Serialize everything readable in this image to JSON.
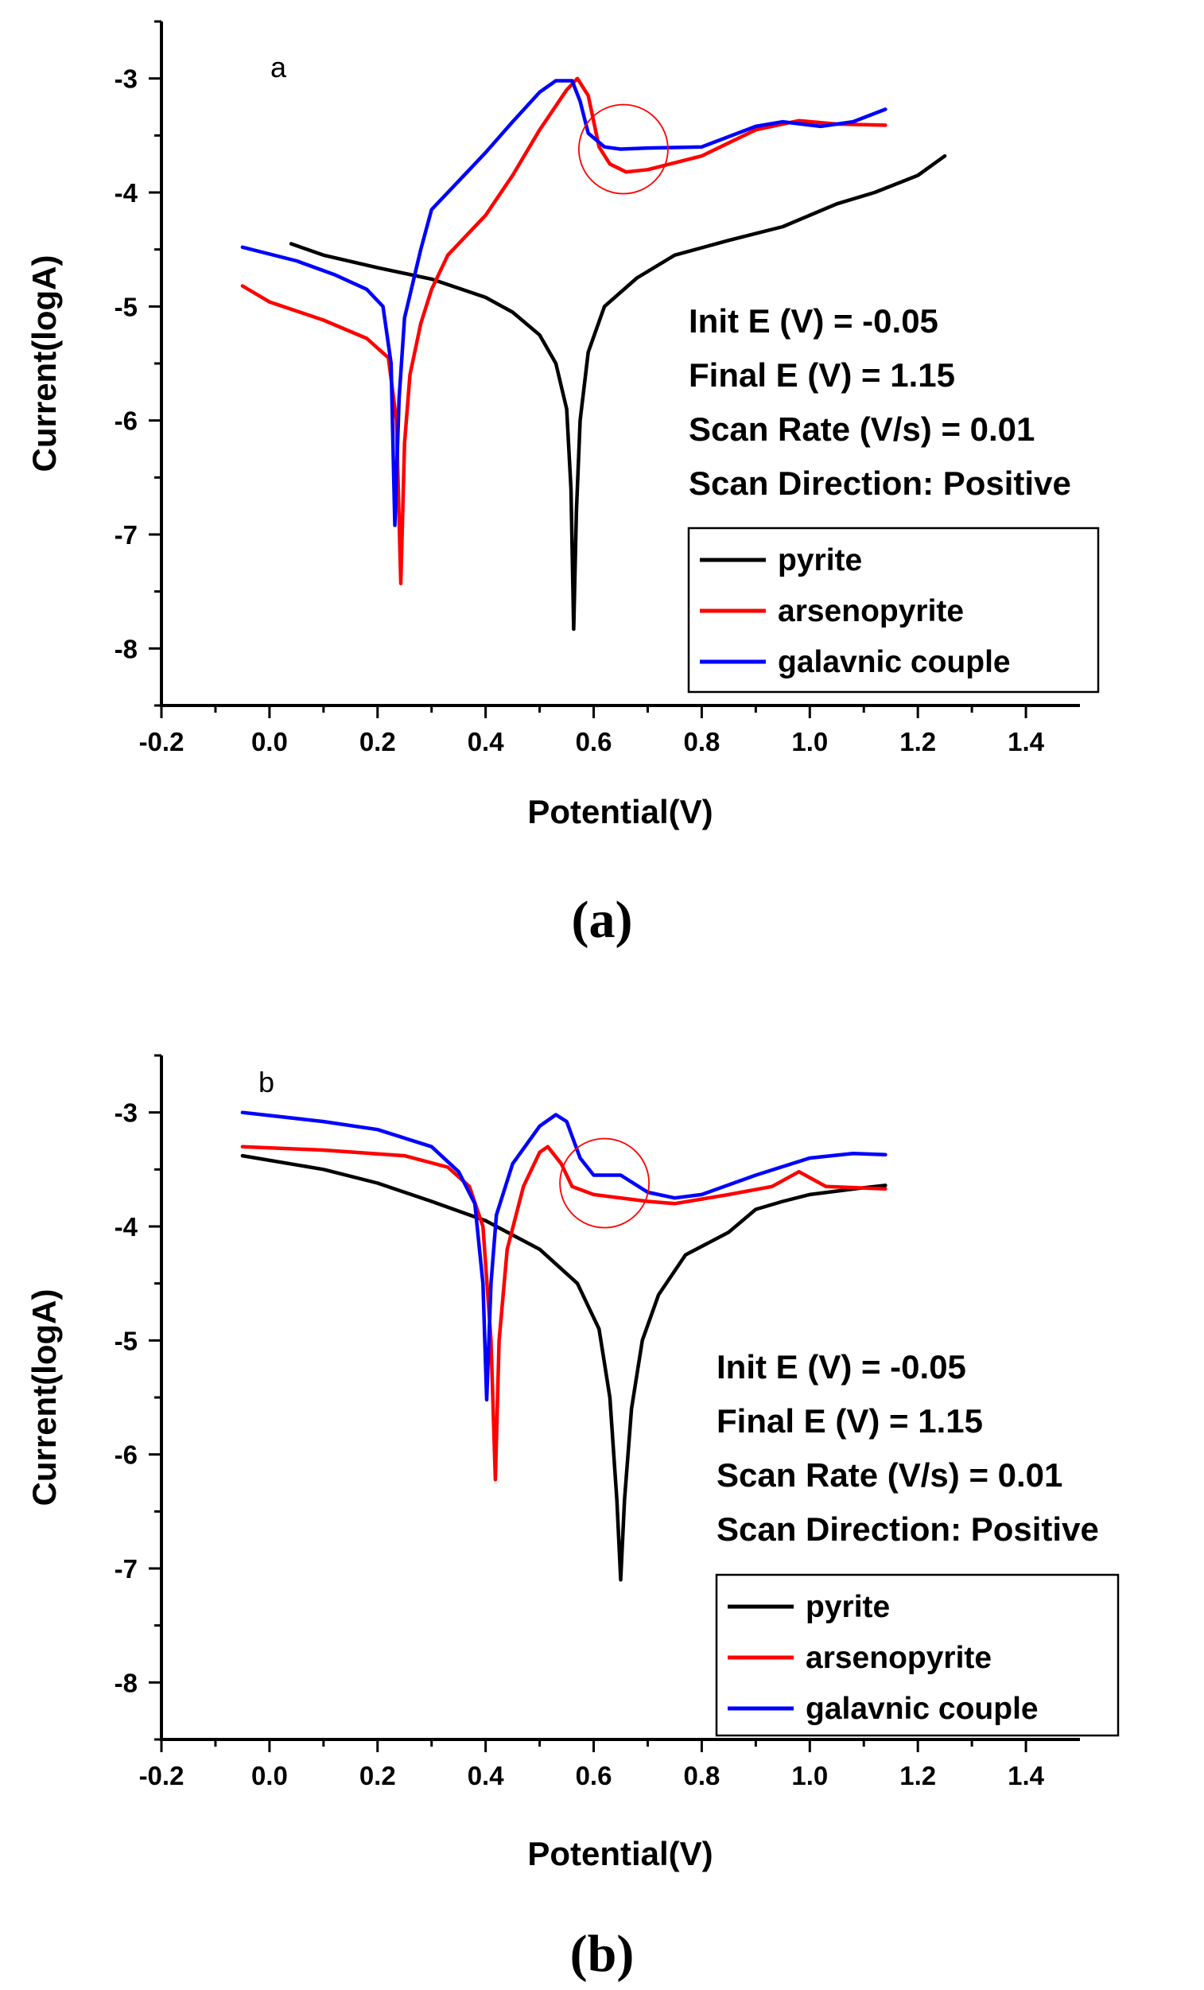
{
  "chart_data": [
    {
      "type": "line",
      "panel_tag": "a",
      "caption": "(a)",
      "xlabel": "Potential(V)",
      "ylabel": "Current(logA)",
      "xlim": [
        -0.2,
        1.5
      ],
      "ylim": [
        -8.5,
        -2.5
      ],
      "xticks": [
        -0.2,
        0.0,
        0.2,
        0.4,
        0.6,
        0.8,
        1.0,
        1.2,
        1.4
      ],
      "yticks": [
        -8,
        -7,
        -6,
        -5,
        -4,
        -3
      ],
      "xtick_labels": [
        "-0.2",
        "0.0",
        "0.2",
        "0.4",
        "0.6",
        "0.8",
        "1.0",
        "1.2",
        "1.4"
      ],
      "ytick_labels": [
        "-8",
        "-7",
        "-6",
        "-5",
        "-4",
        "-3"
      ],
      "info_lines": [
        "Init E (V) = -0.05",
        "Final E (V) = 1.15",
        "Scan Rate (V/s) = 0.01",
        "Scan Direction: Positive"
      ],
      "legend": [
        "pyrite",
        "arsenopyrite",
        "galavnic couple"
      ],
      "annotation_circle": {
        "x": 0.655,
        "y": -3.62
      },
      "series": [
        {
          "name": "pyrite",
          "color": "#000000",
          "points": [
            [
              0.04,
              -4.45
            ],
            [
              0.1,
              -4.55
            ],
            [
              0.2,
              -4.66
            ],
            [
              0.3,
              -4.76
            ],
            [
              0.4,
              -4.92
            ],
            [
              0.45,
              -5.05
            ],
            [
              0.5,
              -5.25
            ],
            [
              0.53,
              -5.5
            ],
            [
              0.55,
              -5.9
            ],
            [
              0.558,
              -6.6
            ],
            [
              0.563,
              -7.83
            ],
            [
              0.568,
              -6.8
            ],
            [
              0.575,
              -6.0
            ],
            [
              0.59,
              -5.4
            ],
            [
              0.62,
              -5.0
            ],
            [
              0.68,
              -4.75
            ],
            [
              0.75,
              -4.55
            ],
            [
              0.85,
              -4.42
            ],
            [
              0.95,
              -4.3
            ],
            [
              1.05,
              -4.1
            ],
            [
              1.12,
              -4.0
            ],
            [
              1.2,
              -3.85
            ],
            [
              1.25,
              -3.68
            ]
          ]
        },
        {
          "name": "arsenopyrite",
          "color": "#ff0000",
          "points": [
            [
              -0.05,
              -4.82
            ],
            [
              0.0,
              -4.96
            ],
            [
              0.1,
              -5.12
            ],
            [
              0.18,
              -5.28
            ],
            [
              0.22,
              -5.45
            ],
            [
              0.235,
              -6.0
            ],
            [
              0.243,
              -7.43
            ],
            [
              0.25,
              -6.2
            ],
            [
              0.26,
              -5.6
            ],
            [
              0.28,
              -5.15
            ],
            [
              0.3,
              -4.85
            ],
            [
              0.33,
              -4.55
            ],
            [
              0.4,
              -4.2
            ],
            [
              0.45,
              -3.85
            ],
            [
              0.5,
              -3.45
            ],
            [
              0.55,
              -3.1
            ],
            [
              0.57,
              -3.0
            ],
            [
              0.59,
              -3.15
            ],
            [
              0.61,
              -3.6
            ],
            [
              0.63,
              -3.75
            ],
            [
              0.66,
              -3.82
            ],
            [
              0.7,
              -3.8
            ],
            [
              0.8,
              -3.68
            ],
            [
              0.9,
              -3.45
            ],
            [
              0.98,
              -3.37
            ],
            [
              1.05,
              -3.4
            ],
            [
              1.14,
              -3.41
            ]
          ]
        },
        {
          "name": "galavnic couple",
          "color": "#0000ff",
          "points": [
            [
              -0.05,
              -4.48
            ],
            [
              0.05,
              -4.6
            ],
            [
              0.12,
              -4.72
            ],
            [
              0.18,
              -4.85
            ],
            [
              0.21,
              -5.0
            ],
            [
              0.225,
              -5.5
            ],
            [
              0.232,
              -6.92
            ],
            [
              0.24,
              -5.8
            ],
            [
              0.25,
              -5.1
            ],
            [
              0.28,
              -4.5
            ],
            [
              0.3,
              -4.15
            ],
            [
              0.35,
              -3.9
            ],
            [
              0.4,
              -3.65
            ],
            [
              0.45,
              -3.38
            ],
            [
              0.5,
              -3.12
            ],
            [
              0.53,
              -3.02
            ],
            [
              0.56,
              -3.02
            ],
            [
              0.575,
              -3.2
            ],
            [
              0.59,
              -3.48
            ],
            [
              0.62,
              -3.6
            ],
            [
              0.65,
              -3.62
            ],
            [
              0.7,
              -3.61
            ],
            [
              0.8,
              -3.6
            ],
            [
              0.9,
              -3.42
            ],
            [
              0.95,
              -3.38
            ],
            [
              1.02,
              -3.42
            ],
            [
              1.08,
              -3.38
            ],
            [
              1.14,
              -3.27
            ]
          ]
        }
      ]
    },
    {
      "type": "line",
      "panel_tag": "b",
      "caption": "(b)",
      "xlabel": "Potential(V)",
      "ylabel": "Current(logA)",
      "xlim": [
        -0.2,
        1.5
      ],
      "ylim": [
        -8.5,
        -2.5
      ],
      "xticks": [
        -0.2,
        0.0,
        0.2,
        0.4,
        0.6,
        0.8,
        1.0,
        1.2,
        1.4
      ],
      "yticks": [
        -8,
        -7,
        -6,
        -5,
        -4,
        -3
      ],
      "xtick_labels": [
        "-0.2",
        "0.0",
        "0.2",
        "0.4",
        "0.6",
        "0.8",
        "1.0",
        "1.2",
        "1.4"
      ],
      "ytick_labels": [
        "-8",
        "-7",
        "-6",
        "-5",
        "-4",
        "-3"
      ],
      "info_lines": [
        "Init E (V) = -0.05",
        "Final E (V) = 1.15",
        "Scan Rate (V/s) = 0.01",
        "Scan Direction: Positive"
      ],
      "legend": [
        "pyrite",
        "arsenopyrite",
        "galavnic couple"
      ],
      "annotation_circle": {
        "x": 0.62,
        "y": -3.62
      },
      "series": [
        {
          "name": "pyrite",
          "color": "#000000",
          "points": [
            [
              -0.05,
              -3.38
            ],
            [
              0.1,
              -3.5
            ],
            [
              0.2,
              -3.62
            ],
            [
              0.3,
              -3.78
            ],
            [
              0.4,
              -3.95
            ],
            [
              0.5,
              -4.2
            ],
            [
              0.57,
              -4.5
            ],
            [
              0.61,
              -4.9
            ],
            [
              0.63,
              -5.5
            ],
            [
              0.643,
              -6.4
            ],
            [
              0.65,
              -7.1
            ],
            [
              0.657,
              -6.4
            ],
            [
              0.67,
              -5.6
            ],
            [
              0.69,
              -5.0
            ],
            [
              0.72,
              -4.6
            ],
            [
              0.77,
              -4.25
            ],
            [
              0.85,
              -4.05
            ],
            [
              0.9,
              -3.85
            ],
            [
              0.95,
              -3.78
            ],
            [
              1.0,
              -3.72
            ],
            [
              1.1,
              -3.66
            ],
            [
              1.14,
              -3.64
            ]
          ]
        },
        {
          "name": "arsenopyrite",
          "color": "#ff0000",
          "points": [
            [
              -0.05,
              -3.3
            ],
            [
              0.1,
              -3.33
            ],
            [
              0.25,
              -3.38
            ],
            [
              0.33,
              -3.48
            ],
            [
              0.37,
              -3.65
            ],
            [
              0.395,
              -4.0
            ],
            [
              0.41,
              -5.0
            ],
            [
              0.418,
              -6.22
            ],
            [
              0.425,
              -5.0
            ],
            [
              0.44,
              -4.2
            ],
            [
              0.47,
              -3.65
            ],
            [
              0.5,
              -3.35
            ],
            [
              0.515,
              -3.3
            ],
            [
              0.54,
              -3.45
            ],
            [
              0.56,
              -3.65
            ],
            [
              0.6,
              -3.72
            ],
            [
              0.7,
              -3.78
            ],
            [
              0.75,
              -3.8
            ],
            [
              0.85,
              -3.72
            ],
            [
              0.93,
              -3.65
            ],
            [
              0.98,
              -3.52
            ],
            [
              1.03,
              -3.65
            ],
            [
              1.14,
              -3.67
            ]
          ]
        },
        {
          "name": "galavnic couple",
          "color": "#0000ff",
          "points": [
            [
              -0.05,
              -3.0
            ],
            [
              0.1,
              -3.08
            ],
            [
              0.2,
              -3.15
            ],
            [
              0.3,
              -3.3
            ],
            [
              0.35,
              -3.52
            ],
            [
              0.38,
              -3.8
            ],
            [
              0.395,
              -4.5
            ],
            [
              0.402,
              -5.52
            ],
            [
              0.41,
              -4.5
            ],
            [
              0.42,
              -3.9
            ],
            [
              0.45,
              -3.45
            ],
            [
              0.5,
              -3.12
            ],
            [
              0.53,
              -3.02
            ],
            [
              0.55,
              -3.08
            ],
            [
              0.575,
              -3.4
            ],
            [
              0.6,
              -3.55
            ],
            [
              0.65,
              -3.55
            ],
            [
              0.7,
              -3.7
            ],
            [
              0.75,
              -3.75
            ],
            [
              0.8,
              -3.72
            ],
            [
              0.9,
              -3.55
            ],
            [
              1.0,
              -3.4
            ],
            [
              1.08,
              -3.36
            ],
            [
              1.14,
              -3.37
            ]
          ]
        }
      ]
    }
  ]
}
